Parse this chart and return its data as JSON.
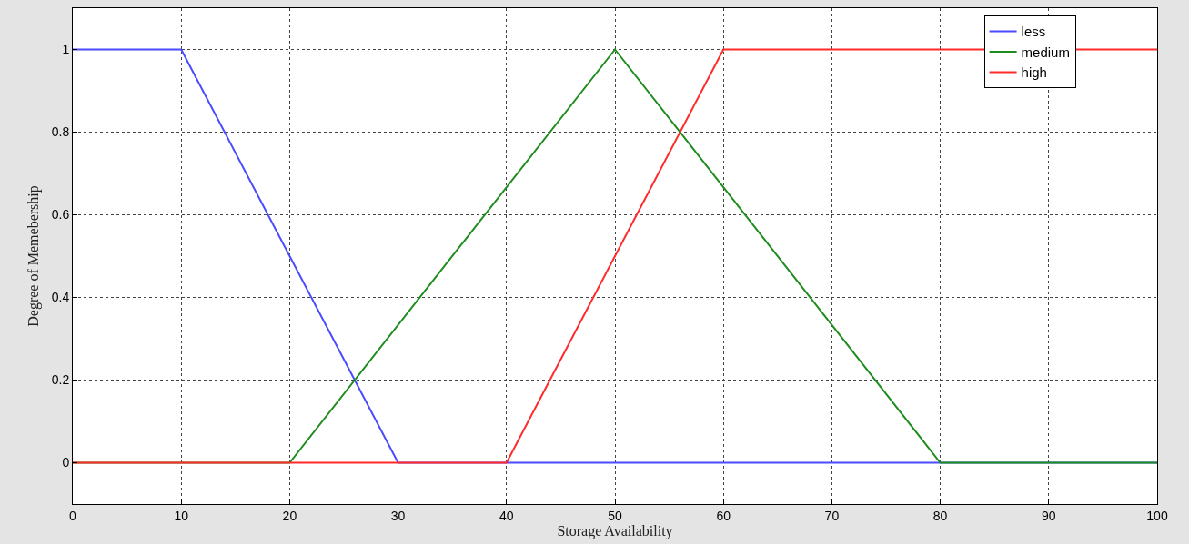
{
  "chart_data": {
    "type": "line",
    "xlabel": "Storage Availability",
    "ylabel": "Degree of Memebership",
    "series": [
      {
        "name": "less",
        "color": "#4b4bff",
        "x": [
          0,
          10,
          30,
          100
        ],
        "values": [
          1,
          1,
          0,
          0
        ]
      },
      {
        "name": "medium",
        "color": "#1e8c1e",
        "x": [
          0,
          20,
          50,
          80,
          100
        ],
        "values": [
          0,
          0,
          1,
          0,
          0
        ]
      },
      {
        "name": "high",
        "color": "#ff2a2a",
        "x": [
          0,
          40,
          60,
          100
        ],
        "values": [
          0,
          0,
          1,
          1
        ]
      }
    ],
    "xlim": [
      0,
      100
    ],
    "xticks": [
      0,
      10,
      20,
      30,
      40,
      50,
      60,
      70,
      80,
      90,
      100
    ],
    "ylim": [
      -0.1,
      1.1
    ],
    "yticks": [
      0,
      0.2,
      0.4,
      0.6,
      0.8,
      1
    ],
    "grid": true,
    "legend": "top right",
    "marker": "none",
    "line_style": "solid"
  }
}
